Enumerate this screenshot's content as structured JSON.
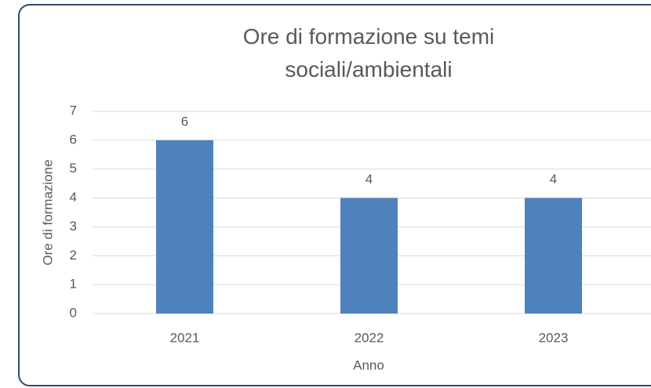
{
  "chart_data": {
    "type": "bar",
    "title": "Ore di formazione su temi sociali/ambientali",
    "x_label": "Anno",
    "y_label": "Ore di formazione",
    "categories": [
      "2021",
      "2022",
      "2023"
    ],
    "values": [
      6,
      4,
      4
    ],
    "color": "#4f81bd",
    "ylim": [
      0,
      7
    ],
    "yticks": [
      0,
      1,
      2,
      3,
      4,
      5,
      6,
      7
    ],
    "grid": true,
    "data_labels": true
  }
}
